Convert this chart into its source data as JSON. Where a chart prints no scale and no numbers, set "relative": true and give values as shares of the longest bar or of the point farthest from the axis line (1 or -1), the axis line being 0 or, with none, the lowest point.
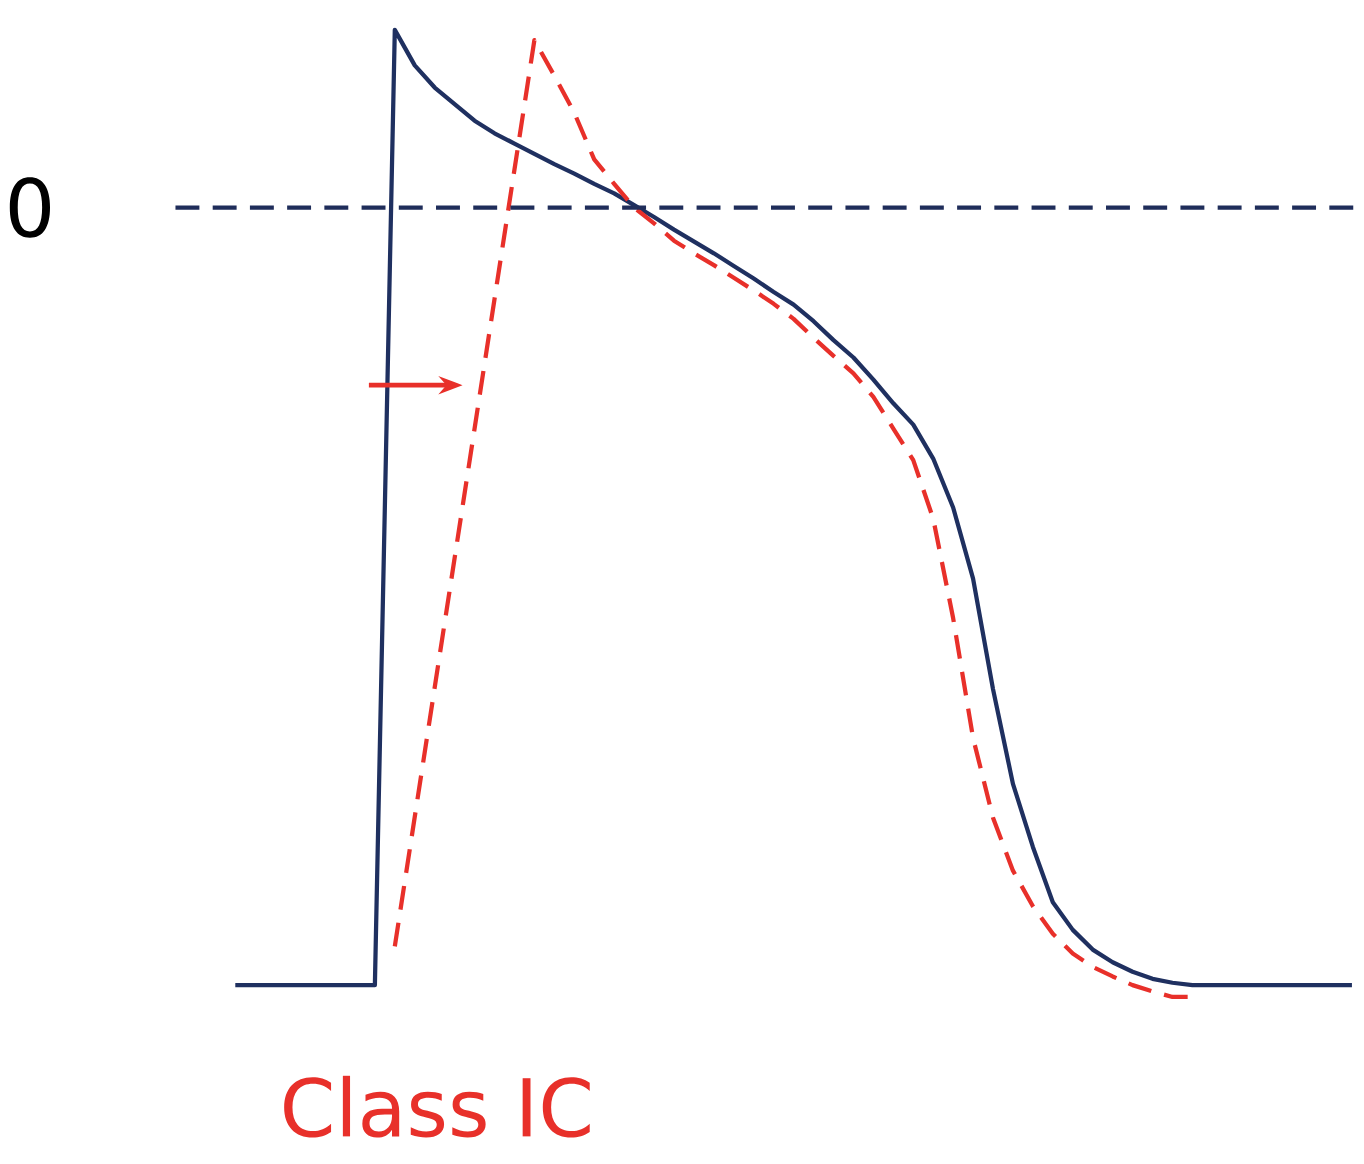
{
  "chart_data": {
    "type": "line",
    "relative": true,
    "categories": [
      null,
      null,
      null,
      null,
      null,
      null,
      null,
      null,
      null,
      null,
      null,
      null,
      null,
      null,
      null,
      null,
      null,
      null,
      null,
      null,
      null,
      null,
      null,
      null,
      null,
      null,
      null,
      null,
      null,
      null,
      null,
      null,
      null,
      null,
      null,
      null,
      null,
      null,
      null,
      null,
      null,
      null,
      null,
      null,
      null,
      null,
      null,
      null,
      null,
      null,
      null,
      null,
      null,
      null,
      null,
      null,
      null
    ],
    "series": [
      {
        "color": "#1f3060",
        "line_style": "solid",
        "values": [
          -0.985,
          -0.985,
          -0.985,
          -0.985,
          -0.985,
          -0.985,
          -0.985,
          -0.985,
          0.225,
          0.18,
          0.152,
          0.131,
          0.11,
          0.094,
          0.081,
          0.068,
          0.055,
          0.043,
          0.03,
          0.018,
          0.003,
          -0.012,
          -0.028,
          -0.043,
          -0.058,
          -0.074,
          -0.09,
          -0.107,
          -0.123,
          -0.144,
          -0.168,
          -0.19,
          -0.218,
          -0.248,
          -0.275,
          -0.318,
          -0.38,
          -0.47,
          -0.61,
          -0.73,
          -0.81,
          -0.88,
          -0.915,
          -0.94,
          -0.956,
          -0.968,
          -0.977,
          -0.982,
          -0.985,
          -0.985,
          -0.985,
          -0.985,
          -0.985,
          -0.985,
          -0.985,
          -0.985,
          -0.985
        ]
      },
      {
        "color": "#e8302a",
        "line_style": "dashed",
        "values": [
          null,
          null,
          null,
          null,
          null,
          null,
          null,
          null,
          -0.936,
          -0.772,
          -0.608,
          -0.444,
          -0.28,
          -0.116,
          0.048,
          0.212,
          0.167,
          0.12,
          0.061,
          0.03,
          0.0,
          -0.02,
          -0.042,
          -0.058,
          -0.073,
          -0.089,
          -0.105,
          -0.122,
          -0.141,
          -0.165,
          -0.188,
          -0.21,
          -0.24,
          -0.28,
          -0.32,
          -0.394,
          -0.52,
          -0.672,
          -0.773,
          -0.84,
          -0.885,
          -0.92,
          -0.945,
          -0.962,
          -0.974,
          -0.985,
          -0.993,
          -1,
          -1,
          null,
          null,
          null,
          null,
          null,
          null,
          null,
          null
        ]
      }
    ],
    "ref_lines": [
      {
        "axis": "y",
        "value": 0,
        "label": "0",
        "color": "#1f2d5a",
        "line_style": "dashed"
      }
    ],
    "annotations": [
      "Class IC"
    ]
  }
}
